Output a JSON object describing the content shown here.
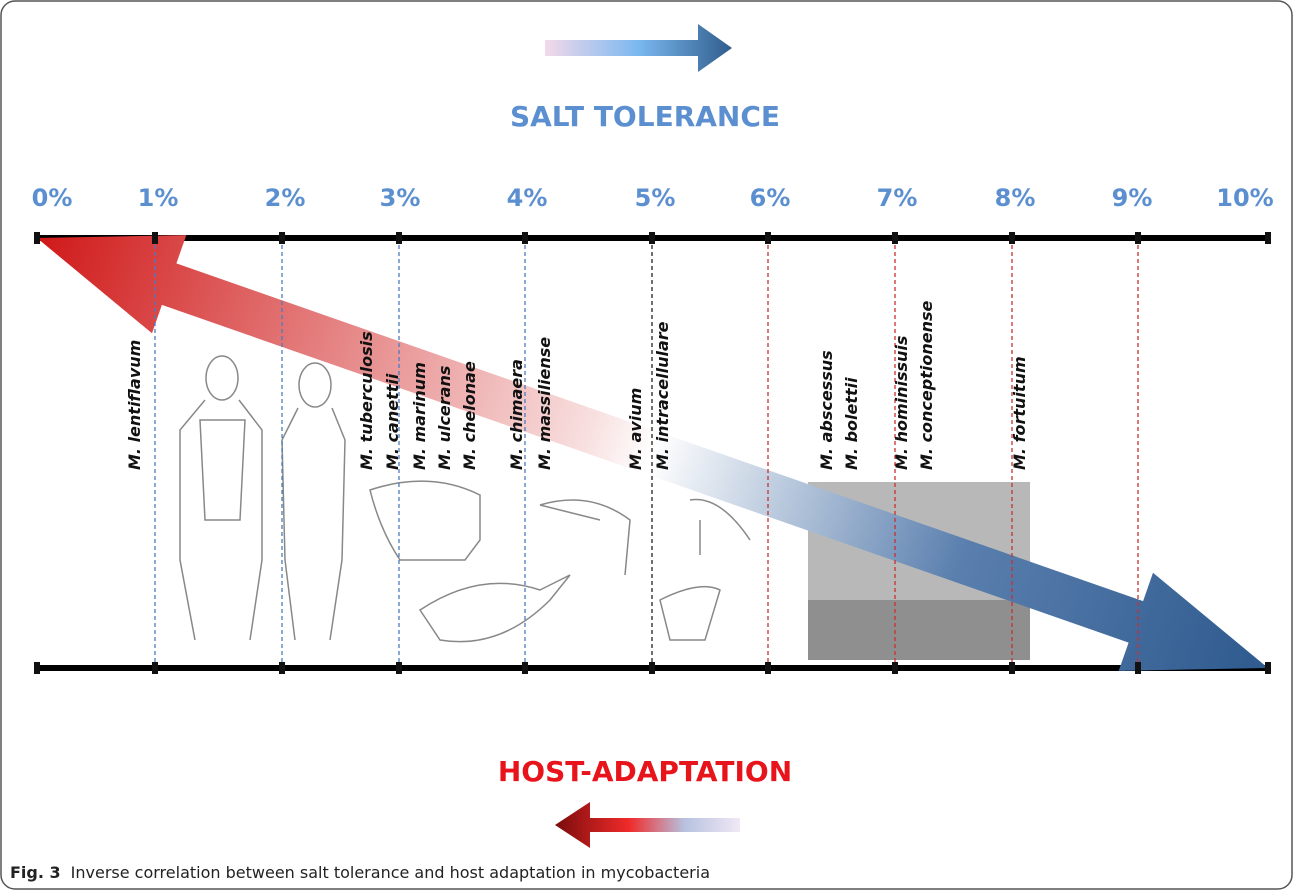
{
  "top_label": "SALT TOLERANCE",
  "bottom_label": "HOST-ADAPTATION",
  "scale": [
    "0%",
    "1%",
    "2%",
    "3%",
    "4%",
    "5%",
    "6%",
    "7%",
    "8%",
    "9%",
    "10%"
  ],
  "species": [
    "M. lentiflavum",
    "M. tuberculosis",
    "M. canettii",
    "M. marinum",
    "M. ulcerans",
    "M. chelonae",
    "M. chimaera",
    "M. massiliense",
    "M. avium",
    "M. intracellulare",
    "M. abscessus",
    "M. bolettii",
    "M. hominissuis",
    "M. conceptionense",
    "M. fortuitum"
  ],
  "caption": {
    "label": "Fig. 3",
    "text": "Inverse correlation between salt tolerance and host adaptation in mycobacteria"
  }
}
